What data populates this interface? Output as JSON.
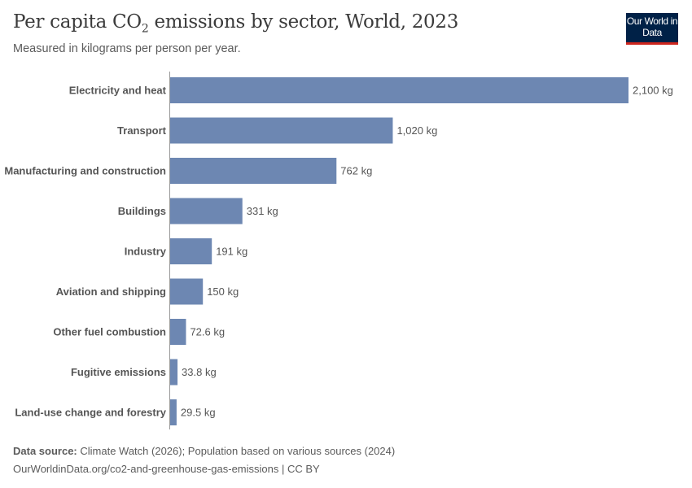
{
  "header": {
    "title_prefix": "Per capita CO",
    "title_sub": "2",
    "title_suffix": " emissions by sector, World, 2023",
    "subtitle": "Measured in kilograms per person per year.",
    "logo": "Our World in Data"
  },
  "chart_data": {
    "type": "bar",
    "orientation": "horizontal",
    "categories": [
      "Electricity and heat",
      "Transport",
      "Manufacturing and construction",
      "Buildings",
      "Industry",
      "Aviation and shipping",
      "Other fuel combustion",
      "Fugitive emissions",
      "Land-use change and forestry"
    ],
    "values": [
      2100,
      1020,
      762,
      331,
      191,
      150,
      72.6,
      33.8,
      29.5
    ],
    "data_labels": [
      "2,100 kg",
      "1,020 kg",
      "762 kg",
      "331 kg",
      "191 kg",
      "150 kg",
      "72.6 kg",
      "33.8 kg",
      "29.5 kg"
    ],
    "unit": "kg",
    "xlim": [
      0,
      2100
    ],
    "grid": false,
    "bar_color": "#6d87b2"
  },
  "footer": {
    "source_label": "Data source:",
    "source_text": " Climate Watch (2026); Population based on various sources (2024)",
    "url": "OurWorldinData.org/co2-and-greenhouse-gas-emissions | CC BY"
  }
}
